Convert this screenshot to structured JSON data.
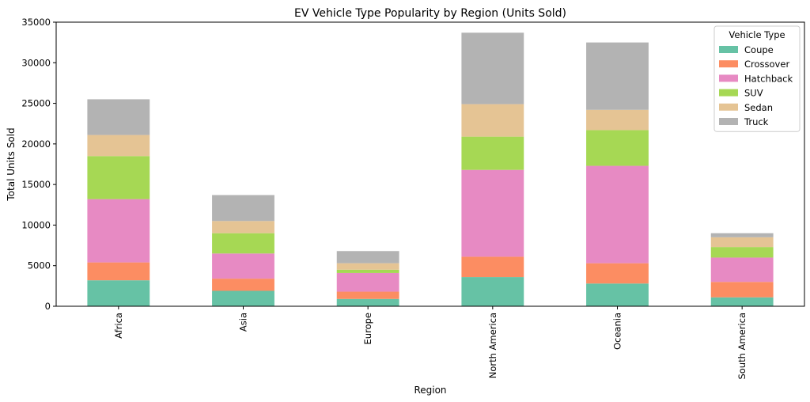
{
  "chart_data": {
    "type": "bar",
    "stacked": true,
    "title": "EV Vehicle Type Popularity by Region (Units Sold)",
    "xlabel": "Region",
    "ylabel": "Total Units Sold",
    "ylim": [
      0,
      35000
    ],
    "yticks": [
      0,
      5000,
      10000,
      15000,
      20000,
      25000,
      30000,
      35000
    ],
    "categories": [
      "Africa",
      "Asia",
      "Europe",
      "North America",
      "Oceania",
      "South America"
    ],
    "legend": {
      "title": "Vehicle Type",
      "position": "top-right"
    },
    "grid": false,
    "series": [
      {
        "name": "Coupe",
        "color": "#66c2a5",
        "values": [
          3200,
          1900,
          900,
          3600,
          2800,
          1100
        ]
      },
      {
        "name": "Crossover",
        "color": "#fc8d62",
        "values": [
          2200,
          1500,
          900,
          2500,
          2500,
          1900
        ]
      },
      {
        "name": "Hatchback",
        "color": "#e78ac3",
        "values": [
          7800,
          3100,
          2300,
          10700,
          12000,
          3000
        ]
      },
      {
        "name": "SUV",
        "color": "#a6d854",
        "values": [
          5300,
          2500,
          400,
          4100,
          4400,
          1300
        ]
      },
      {
        "name": "Sedan",
        "color": "#e5c494",
        "values": [
          2600,
          1500,
          800,
          4000,
          2500,
          1200
        ]
      },
      {
        "name": "Truck",
        "color": "#b3b3b3",
        "values": [
          4400,
          3200,
          1500,
          8800,
          8300,
          500
        ]
      }
    ]
  }
}
